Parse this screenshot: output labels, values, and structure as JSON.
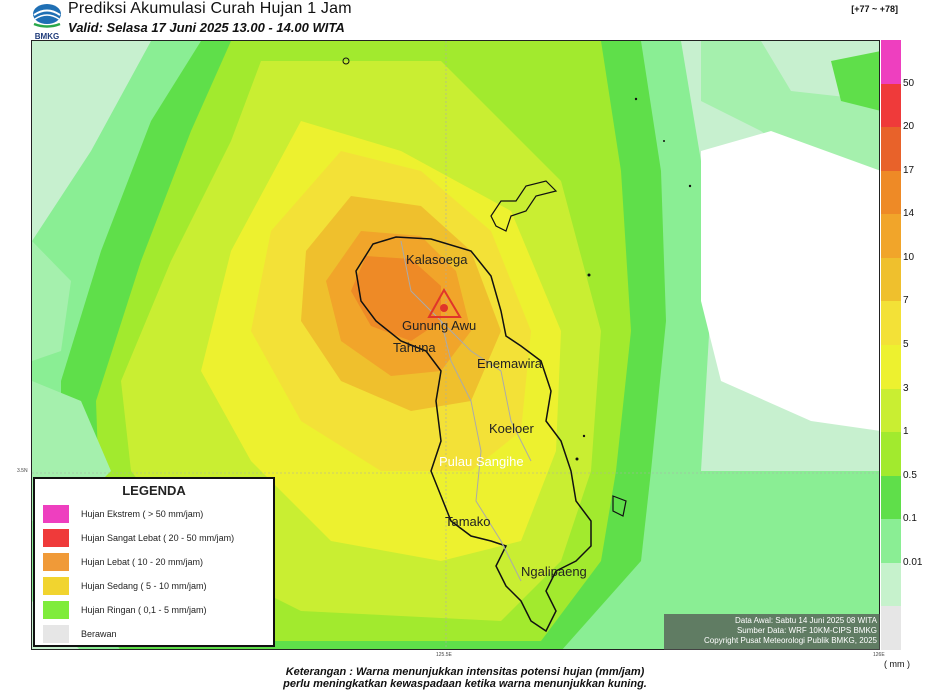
{
  "header": {
    "title": "Prediksi Akumulasi Curah Hujan 1 Jam",
    "valid": "Valid: Selasa 17 Juni 2025 13.00 - 14.00 WITA",
    "province_code": "[+77 ~ +78]",
    "logo_text": "BMKG"
  },
  "places": {
    "kalasoega": "Kalasoega",
    "gunung_awu": "Gunung Awu",
    "tahuna": "Tahuna",
    "enemawira": "Enemawira",
    "koeloer": "Koeloer",
    "pulau_sangihe": "Pulau Sangihe",
    "tamako": "Tamako",
    "ngalipaeng": "Ngalipaeng"
  },
  "axes": {
    "lat_label": "3.5N",
    "lon1": "125.5E",
    "lon2": "126E"
  },
  "scale": {
    "unit": "( mm )",
    "ticks": [
      "50",
      "20",
      "17",
      "14",
      "10",
      "7",
      "5",
      "3",
      "1",
      "0.5",
      "0.1",
      "0.01"
    ],
    "colors": [
      "#ee3fbf",
      "#ef3a3a",
      "#e8622a",
      "#ee8a26",
      "#f1a52a",
      "#efc02d",
      "#f3e137",
      "#edf12f",
      "#c9ee32",
      "#a2ea2e",
      "#5fdf4a",
      "#8aee94",
      "#c6f2cc",
      "#e6e6e6"
    ]
  },
  "legend": {
    "title": "LEGENDA",
    "items": [
      {
        "label": "Hujan Ekstrem ( > 50 mm/jam)",
        "color": "#ee3fbf"
      },
      {
        "label": "Hujan Sangat Lebat ( 20 - 50 mm/jam)",
        "color": "#ef3a3a"
      },
      {
        "label": "Hujan Lebat ( 10 - 20 mm/jam)",
        "color": "#f09a38"
      },
      {
        "label": "Hujan Sedang ( 5 - 10 mm/jam)",
        "color": "#f1d42f"
      },
      {
        "label": "Hujan Ringan ( 0,1 - 5 mm/jam)",
        "color": "#7fec3b"
      },
      {
        "label": "Berawan",
        "color": "#e6e6e6"
      }
    ]
  },
  "info": {
    "line1": "Data Awal: Sabtu 14 Juni 2025 08 WITA",
    "line2": "Sumber Data: WRF 10KM-CIPS BMKG",
    "line3": "Copyright Pusat Meteorologi Publik BMKG, 2025"
  },
  "note": {
    "line1": "Keterangan : Warna menunjukkan intensitas potensi hujan (mm/jam)",
    "line2": "perlu meningkatkan kewaspadaan ketika warna menunjukkan kuning."
  }
}
